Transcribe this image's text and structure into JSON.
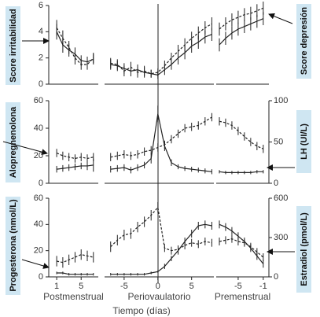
{
  "chart_data": {
    "type": "line",
    "xlabel": "Tiempo (días)",
    "x_segments": [
      {
        "label": "Postmenstrual",
        "xlim": [
          -0.3,
          7.8
        ],
        "xticks": [
          1,
          5
        ]
      },
      {
        "label": "Periovaulatorio",
        "xlim": [
          -7.9,
          8.3
        ],
        "xticks": [
          -5,
          0,
          5
        ]
      },
      {
        "label": "Premenstrual",
        "xlim": [
          -8.5,
          -0.1
        ],
        "xticks": [
          -5,
          -1
        ]
      }
    ],
    "panels": [
      {
        "ylabel": "Score irritabilidad",
        "y2label": "Score depresión",
        "ylim": [
          0,
          6
        ],
        "yticks": [
          0,
          2,
          4,
          6
        ],
        "series": [
          {
            "color": "#222",
            "style": "solid",
            "axis": "y",
            "segments": [
              {
                "x": [
                  1,
                  2,
                  3,
                  4,
                  5,
                  6,
                  7
                ],
                "values": [
                  4.0,
                  3.0,
                  2.6,
                  2.3,
                  1.8,
                  1.7,
                  1.9
                ],
                "errors": [
                  0.6,
                  0.6,
                  0.5,
                  0.5,
                  0.4,
                  0.4,
                  0.4
                ]
              },
              {
                "x": [
                  -7,
                  -6,
                  -5,
                  -4,
                  -3,
                  -2,
                  -1,
                  0,
                  1,
                  2,
                  3,
                  4,
                  5,
                  6,
                  7,
                  8
                ],
                "values": [
                  1.5,
                  1.4,
                  1.2,
                  1.0,
                  1.1,
                  0.9,
                  0.8,
                  0.7,
                  1.1,
                  1.5,
                  2.0,
                  2.4,
                  2.9,
                  3.2,
                  3.6,
                  3.8
                ],
                "errors": [
                  0.4,
                  0.4,
                  0.4,
                  0.4,
                  0.4,
                  0.4,
                  0.3,
                  0.3,
                  0.4,
                  0.4,
                  0.5,
                  0.5,
                  0.5,
                  0.5,
                  0.5,
                  0.5
                ]
              },
              {
                "x": [
                  -8,
                  -7,
                  -6,
                  -5,
                  -4,
                  -3,
                  -2,
                  -1
                ],
                "values": [
                  3.0,
                  3.5,
                  3.9,
                  4.2,
                  4.4,
                  4.6,
                  4.8,
                  5.0
                ],
                "errors": [
                  0.5,
                  0.5,
                  0.5,
                  0.5,
                  0.5,
                  0.5,
                  0.5,
                  0.5
                ]
              }
            ]
          },
          {
            "color": "#222",
            "style": "dashed",
            "axis": "y",
            "segments": [
              {
                "x": [
                  1,
                  2,
                  3,
                  4,
                  5,
                  6,
                  7
                ],
                "values": [
                  4.3,
                  3.5,
                  2.8,
                  2.0,
                  1.5,
                  1.5,
                  2.0
                ],
                "errors": [
                  0.6,
                  0.6,
                  0.5,
                  0.5,
                  0.4,
                  0.4,
                  0.4
                ]
              },
              {
                "x": [
                  -7,
                  -6,
                  -5,
                  -4,
                  -3,
                  -2,
                  -1,
                  0,
                  1,
                  2,
                  3,
                  4,
                  5,
                  6,
                  7,
                  8
                ],
                "values": [
                  1.6,
                  1.5,
                  1.0,
                  1.3,
                  0.9,
                  1.0,
                  0.8,
                  0.9,
                  1.4,
                  2.0,
                  2.5,
                  3.0,
                  3.5,
                  3.9,
                  4.3,
                  4.6
                ],
                "errors": [
                  0.4,
                  0.4,
                  0.4,
                  0.4,
                  0.4,
                  0.4,
                  0.3,
                  0.3,
                  0.4,
                  0.4,
                  0.5,
                  0.5,
                  0.5,
                  0.5,
                  0.5,
                  0.5
                ]
              },
              {
                "x": [
                  -8,
                  -7,
                  -6,
                  -5,
                  -4,
                  -3,
                  -2,
                  -1
                ],
                "values": [
                  4.2,
                  4.6,
                  4.9,
                  5.1,
                  5.3,
                  5.4,
                  5.6,
                  5.8
                ],
                "errors": [
                  0.5,
                  0.5,
                  0.5,
                  0.5,
                  0.5,
                  0.5,
                  0.5,
                  0.5
                ]
              }
            ]
          }
        ]
      },
      {
        "ylabel": "Alopregnenolona",
        "y2label": "LH (UI/L)",
        "ylim": [
          0,
          60
        ],
        "yticks": [
          0,
          20,
          40,
          60
        ],
        "y2lim": [
          0,
          100
        ],
        "y2ticks": [
          0,
          50,
          100
        ],
        "series": [
          {
            "color": "#222",
            "style": "dashed",
            "axis": "y",
            "segments": [
              {
                "x": [
                  1,
                  2,
                  3,
                  4,
                  5,
                  6,
                  7
                ],
                "values": [
                  22,
                  20,
                  19,
                  18,
                  19,
                  18,
                  19
                ],
                "errors": [
                  3,
                  3,
                  3,
                  3,
                  3,
                  3,
                  3
                ]
              },
              {
                "x": [
                  -7,
                  -6,
                  -5,
                  -4,
                  -3,
                  -2,
                  -1,
                  0,
                  1,
                  2,
                  3,
                  4,
                  5,
                  6,
                  7,
                  8
                ],
                "values": [
                  19,
                  20,
                  21,
                  20,
                  21,
                  23,
                  24,
                  26,
                  28,
                  32,
                  36,
                  40,
                  41,
                  42,
                  45,
                  48
                ],
                "errors": [
                  3,
                  3,
                  3,
                  3,
                  3,
                  3,
                  3,
                  3,
                  3,
                  3,
                  3,
                  3,
                  3,
                  3,
                  3,
                  3
                ]
              },
              {
                "x": [
                  -8,
                  -7,
                  -6,
                  -5,
                  -4,
                  -3,
                  -2,
                  -1
                ],
                "values": [
                  45,
                  44,
                  42,
                  38,
                  34,
                  30,
                  27,
                  25
                ],
                "errors": [
                  3,
                  3,
                  3,
                  3,
                  3,
                  3,
                  3,
                  3
                ]
              }
            ]
          },
          {
            "color": "#222",
            "style": "solid",
            "axis": "y2",
            "segments": [
              {
                "x": [
                  1,
                  2,
                  3,
                  4,
                  5,
                  6,
                  7
                ],
                "values": [
                  17,
                  18,
                  19,
                  20,
                  21,
                  21,
                  22
                ],
                "errors": [
                  4,
                  4,
                  4,
                  4,
                  4,
                  5,
                  8
                ]
              },
              {
                "x": [
                  -7,
                  -6,
                  -5,
                  -4,
                  -3,
                  -2,
                  -1,
                  0,
                  1,
                  2,
                  3,
                  4,
                  5,
                  6,
                  7,
                  8
                ],
                "values": [
                  17,
                  18,
                  19,
                  16,
                  19,
                  22,
                  30,
                  84,
                  45,
                  25,
                  20,
                  18,
                  17,
                  16,
                  15,
                  14
                ],
                "errors": [
                  4,
                  4,
                  4,
                  4,
                  4,
                  4,
                  6,
                  10,
                  6,
                  4,
                  3,
                  3,
                  3,
                  3,
                  3,
                  3
                ]
              },
              {
                "x": [
                  -8,
                  -7,
                  -6,
                  -5,
                  -4,
                  -3,
                  -2,
                  -1
                ],
                "values": [
                  14,
                  13,
                  13,
                  13,
                  13,
                  13,
                  14,
                  14
                ],
                "errors": [
                  2,
                  2,
                  2,
                  2,
                  2,
                  2,
                  2,
                  2
                ]
              }
            ]
          }
        ]
      },
      {
        "ylabel": "Progesterona (nmol/L)",
        "y2label": "Estradiol (pmol/L)",
        "ylim": [
          0,
          60
        ],
        "yticks": [
          0,
          20,
          40,
          60
        ],
        "y2lim": [
          0,
          600
        ],
        "y2ticks": [
          0,
          300,
          600
        ],
        "series": [
          {
            "color": "#222",
            "style": "solid",
            "axis": "y",
            "segments": [
              {
                "x": [
                  1,
                  2,
                  3,
                  4,
                  5,
                  6,
                  7
                ],
                "values": [
                  3,
                  3,
                  2,
                  2,
                  2,
                  2,
                  2
                ],
                "errors": [
                  1,
                  1,
                  1,
                  1,
                  1,
                  1,
                  1
                ]
              },
              {
                "x": [
                  -7,
                  -6,
                  -5,
                  -4,
                  -3,
                  -2,
                  -1,
                  0,
                  1,
                  2,
                  3,
                  4,
                  5,
                  6,
                  7,
                  8
                ],
                "values": [
                  2,
                  2,
                  2,
                  2,
                  2,
                  2,
                  3,
                  4,
                  8,
                  14,
                  20,
                  27,
                  33,
                  39,
                  40,
                  39
                ],
                "errors": [
                  1,
                  1,
                  1,
                  1,
                  1,
                  1,
                  1,
                  1,
                  2,
                  2,
                  3,
                  3,
                  3,
                  3,
                  3,
                  3
                ]
              },
              {
                "x": [
                  -8,
                  -7,
                  -6,
                  -5,
                  -4,
                  -3,
                  -2,
                  -1
                ],
                "values": [
                  40,
                  38,
                  35,
                  31,
                  27,
                  22,
                  16,
                  10
                ],
                "errors": [
                  3,
                  3,
                  3,
                  3,
                  3,
                  3,
                  3,
                  3
                ]
              }
            ]
          },
          {
            "color": "#222",
            "style": "dashed",
            "axis": "y2",
            "segments": [
              {
                "x": [
                  1,
                  2,
                  3,
                  4,
                  5,
                  6,
                  7
                ],
                "values": [
                  120,
                  110,
                  130,
                  150,
                  170,
                  160,
                  150
                ],
                "errors": [
                  40,
                  40,
                  40,
                  40,
                  40,
                  40,
                  40
                ]
              },
              {
                "x": [
                  -7,
                  -6,
                  -5,
                  -4,
                  -3,
                  -2,
                  -1,
                  0,
                  1,
                  2,
                  3,
                  4,
                  5,
                  6,
                  7,
                  8
                ],
                "values": [
                  230,
                  280,
                  320,
                  330,
                  380,
                  420,
                  470,
                  530,
                  220,
                  200,
                  210,
                  240,
                  260,
                  250,
                  270,
                  260
                ],
                "errors": [
                  40,
                  40,
                  40,
                  40,
                  40,
                  40,
                  40,
                  40,
                  30,
                  30,
                  30,
                  30,
                  30,
                  30,
                  30,
                  30
                ]
              },
              {
                "x": [
                  -8,
                  -7,
                  -6,
                  -5,
                  -4,
                  -3,
                  -2,
                  -1
                ],
                "values": [
                  270,
                  280,
                  290,
                  270,
                  260,
                  230,
                  190,
                  150
                ],
                "errors": [
                  30,
                  30,
                  30,
                  30,
                  30,
                  30,
                  30,
                  30
                ]
              }
            ]
          }
        ]
      }
    ]
  }
}
